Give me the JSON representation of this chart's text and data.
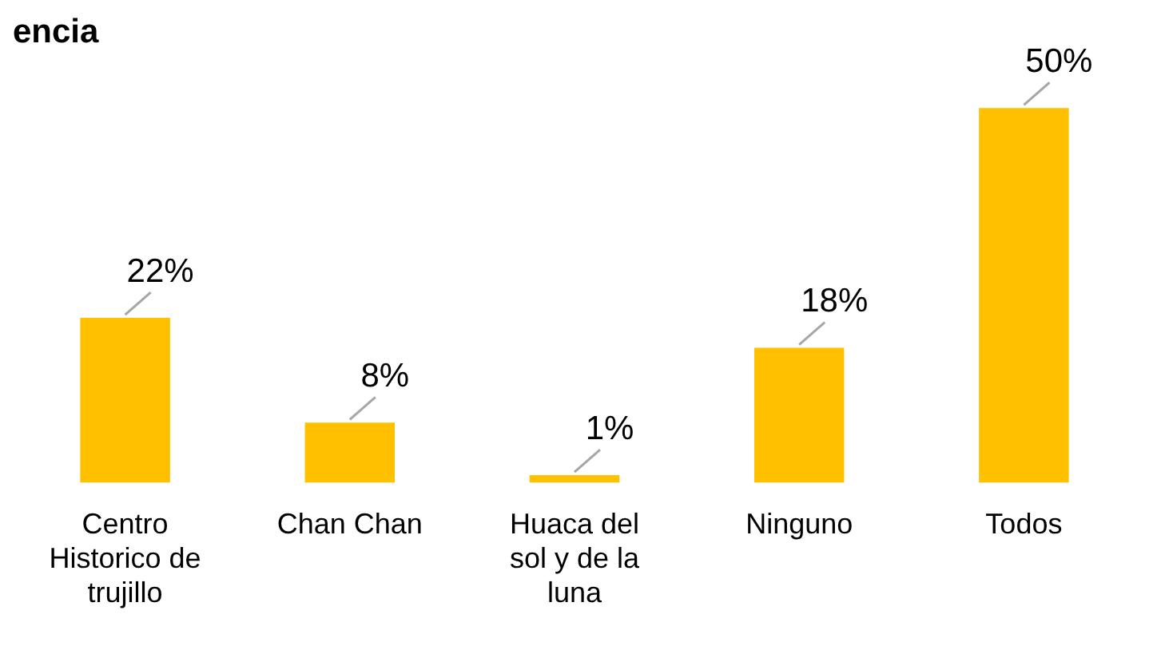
{
  "chart_data": {
    "type": "bar",
    "title": "encia",
    "categories": [
      "Centro Historico de trujillo",
      "Chan Chan",
      "Huaca del sol y de la luna",
      "Ninguno",
      "Todos"
    ],
    "values": [
      22,
      8,
      1,
      18,
      50
    ],
    "value_labels": [
      "22%",
      "8%",
      "1%",
      "18%",
      "50%"
    ],
    "color": "#ffc000",
    "grid": false,
    "legend": false
  }
}
